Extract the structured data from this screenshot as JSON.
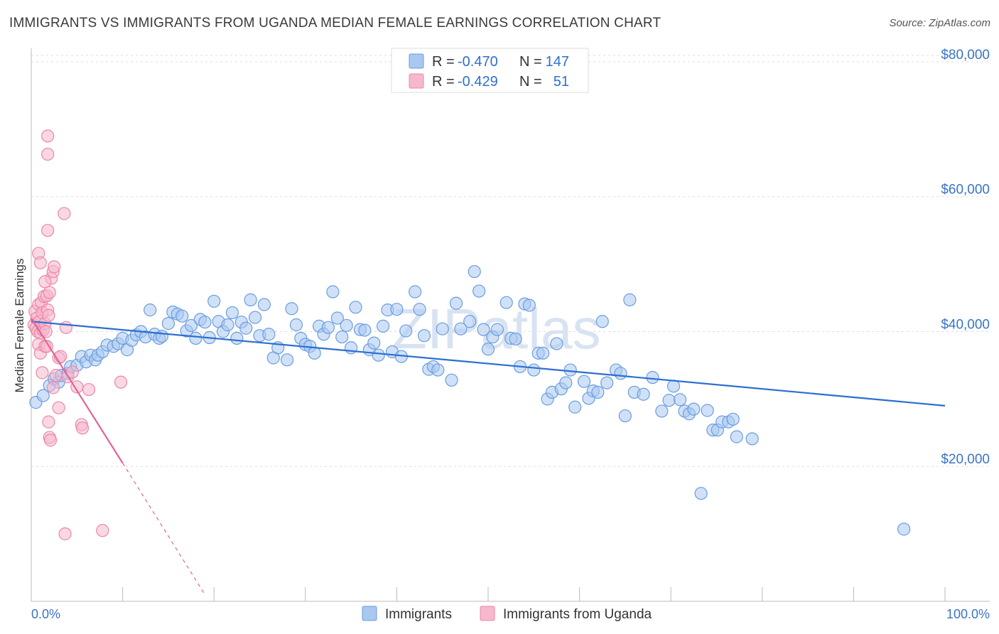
{
  "title": "IMMIGRANTS VS IMMIGRANTS FROM UGANDA MEDIAN FEMALE EARNINGS CORRELATION CHART",
  "source": "Source: ZipAtlas.com",
  "watermark": "ZIPatlas",
  "colors": {
    "blue_fill": "#a9c8f0",
    "blue_stroke": "#6a9de0",
    "blue_line": "#2b6fd0",
    "pink_fill": "#f6b8cc",
    "pink_stroke": "#ec86a8",
    "pink_line": "#e0649a",
    "grid": "#dddddd",
    "tick_label": "#3a73c8"
  },
  "legend": {
    "rows": [
      {
        "r_label": "R = ",
        "r_value": "-0.470",
        "n_label": "N = ",
        "n_value": "147"
      },
      {
        "r_label": "R = ",
        "r_value": "-0.429",
        "n_label": "N = ",
        "n_value": "51"
      }
    ]
  },
  "bottom_legend": [
    "Immigrants",
    "Immigrants from Uganda"
  ],
  "chart_data": {
    "type": "scatter",
    "title": "IMMIGRANTS VS IMMIGRANTS FROM UGANDA MEDIAN FEMALE EARNINGS CORRELATION CHART",
    "xlabel": "",
    "ylabel": "Median Female Earnings",
    "xlim": [
      0,
      100
    ],
    "ylim": [
      0,
      82000
    ],
    "x_tick_labels": [
      "0.0%",
      "100.0%"
    ],
    "y_ticks": [
      20000,
      40000,
      60000,
      80000
    ],
    "y_tick_labels": [
      "$20,000",
      "$40,000",
      "$60,000",
      "$80,000"
    ],
    "series": [
      {
        "name": "Immigrants",
        "r": -0.47,
        "n": 147,
        "trend": {
          "x": [
            0,
            100
          ],
          "y": [
            41500,
            29000
          ]
        },
        "points": [
          [
            0.5,
            29500
          ],
          [
            1.3,
            30500
          ],
          [
            2,
            32000
          ],
          [
            2.5,
            33000
          ],
          [
            3,
            32500
          ],
          [
            3.3,
            33500
          ],
          [
            4,
            33800
          ],
          [
            4.3,
            34800
          ],
          [
            5,
            35000
          ],
          [
            5.5,
            36300
          ],
          [
            6,
            35500
          ],
          [
            6.5,
            36500
          ],
          [
            7,
            35800
          ],
          [
            7.3,
            36500
          ],
          [
            7.8,
            37000
          ],
          [
            8.3,
            38000
          ],
          [
            9,
            37800
          ],
          [
            9.5,
            38200
          ],
          [
            10,
            39000
          ],
          [
            10.5,
            37300
          ],
          [
            11,
            38700
          ],
          [
            11.5,
            39500
          ],
          [
            12,
            40000
          ],
          [
            12.5,
            39200
          ],
          [
            13,
            43200
          ],
          [
            13.5,
            39600
          ],
          [
            14,
            39000
          ],
          [
            14.3,
            39300
          ],
          [
            15,
            41200
          ],
          [
            15.5,
            42900
          ],
          [
            16,
            42600
          ],
          [
            16.5,
            42300
          ],
          [
            17,
            40100
          ],
          [
            17.5,
            40900
          ],
          [
            18,
            39000
          ],
          [
            18.5,
            41800
          ],
          [
            19,
            41400
          ],
          [
            19.5,
            39100
          ],
          [
            20,
            44500
          ],
          [
            20.5,
            41500
          ],
          [
            21,
            40000
          ],
          [
            21.5,
            41000
          ],
          [
            22,
            42800
          ],
          [
            22.5,
            39000
          ],
          [
            23,
            41400
          ],
          [
            23.5,
            40500
          ],
          [
            24,
            44700
          ],
          [
            24.5,
            42100
          ],
          [
            25,
            39400
          ],
          [
            25.5,
            44000
          ],
          [
            26,
            39600
          ],
          [
            26.5,
            36100
          ],
          [
            27,
            37600
          ],
          [
            28,
            35800
          ],
          [
            28.5,
            43400
          ],
          [
            29,
            41000
          ],
          [
            29.5,
            39000
          ],
          [
            30,
            38100
          ],
          [
            30.5,
            37800
          ],
          [
            31,
            36800
          ],
          [
            31.5,
            40800
          ],
          [
            32,
            39600
          ],
          [
            32.5,
            40600
          ],
          [
            33,
            45900
          ],
          [
            33.5,
            42000
          ],
          [
            34,
            39200
          ],
          [
            34.5,
            40900
          ],
          [
            35,
            37600
          ],
          [
            35.5,
            43600
          ],
          [
            36,
            40300
          ],
          [
            36.5,
            40200
          ],
          [
            37,
            37300
          ],
          [
            37.5,
            38300
          ],
          [
            38,
            36500
          ],
          [
            38.5,
            40800
          ],
          [
            39,
            43200
          ],
          [
            39.5,
            37000
          ],
          [
            40,
            43300
          ],
          [
            40.5,
            36300
          ],
          [
            41,
            40100
          ],
          [
            42,
            45900
          ],
          [
            42.5,
            43300
          ],
          [
            43,
            39400
          ],
          [
            43.5,
            34400
          ],
          [
            44,
            34800
          ],
          [
            44.5,
            34300
          ],
          [
            45,
            40400
          ],
          [
            46,
            32800
          ],
          [
            46.5,
            44200
          ],
          [
            47,
            40400
          ],
          [
            48,
            41500
          ],
          [
            48.5,
            48900
          ],
          [
            49,
            46000
          ],
          [
            49.5,
            40300
          ],
          [
            50,
            37400
          ],
          [
            50.5,
            39200
          ],
          [
            51,
            40300
          ],
          [
            52,
            44300
          ],
          [
            52.5,
            39000
          ],
          [
            53,
            38900
          ],
          [
            53.5,
            34800
          ],
          [
            54,
            44100
          ],
          [
            54.5,
            43900
          ],
          [
            55,
            34300
          ],
          [
            55.5,
            36800
          ],
          [
            56,
            36800
          ],
          [
            56.5,
            30000
          ],
          [
            57,
            31000
          ],
          [
            57.5,
            38200
          ],
          [
            58,
            31500
          ],
          [
            58.5,
            32400
          ],
          [
            59,
            34300
          ],
          [
            59.5,
            28800
          ],
          [
            60.5,
            32600
          ],
          [
            61,
            30100
          ],
          [
            61.5,
            31200
          ],
          [
            62,
            31000
          ],
          [
            62.5,
            41500
          ],
          [
            63,
            32400
          ],
          [
            64,
            34300
          ],
          [
            64.5,
            33800
          ],
          [
            65,
            27500
          ],
          [
            65.5,
            44700
          ],
          [
            66,
            31000
          ],
          [
            67,
            30700
          ],
          [
            68,
            33200
          ],
          [
            69,
            28200
          ],
          [
            69.8,
            29800
          ],
          [
            70.3,
            31900
          ],
          [
            71,
            29900
          ],
          [
            71.5,
            28200
          ],
          [
            72,
            27800
          ],
          [
            72.5,
            28500
          ],
          [
            73.3,
            16000
          ],
          [
            74,
            28300
          ],
          [
            74.6,
            25400
          ],
          [
            75.1,
            25400
          ],
          [
            75.6,
            26600
          ],
          [
            76.3,
            26600
          ],
          [
            76.8,
            27000
          ],
          [
            77.2,
            24400
          ],
          [
            78.9,
            24100
          ],
          [
            95.5,
            10700
          ]
        ]
      },
      {
        "name": "Immigrants from Uganda",
        "r": -0.429,
        "n": 51,
        "trend": {
          "x": [
            0,
            10
          ],
          "y": [
            42000,
            20500
          ]
        },
        "trend_dashed": {
          "x": [
            10,
            19
          ],
          "y": [
            20500,
            1000
          ]
        },
        "points": [
          [
            0.3,
            41000
          ],
          [
            0.4,
            43000
          ],
          [
            0.5,
            40500
          ],
          [
            0.6,
            42000
          ],
          [
            0.7,
            40000
          ],
          [
            0.8,
            44000
          ],
          [
            0.9,
            41500
          ],
          [
            1.0,
            39800
          ],
          [
            1.1,
            44300
          ],
          [
            1.2,
            42800
          ],
          [
            1.3,
            40200
          ],
          [
            1.4,
            45200
          ],
          [
            1.5,
            41200
          ],
          [
            1.6,
            40000
          ],
          [
            1.7,
            45300
          ],
          [
            1.8,
            43200
          ],
          [
            1.9,
            42400
          ],
          [
            2.0,
            45800
          ],
          [
            0.8,
            38100
          ],
          [
            1.0,
            36800
          ],
          [
            1.2,
            33900
          ],
          [
            1.5,
            37800
          ],
          [
            1.7,
            37800
          ],
          [
            2.2,
            47900
          ],
          [
            2.4,
            48900
          ],
          [
            0.8,
            51600
          ],
          [
            1.0,
            50200
          ],
          [
            1.5,
            47400
          ],
          [
            1.8,
            55000
          ],
          [
            2.5,
            49600
          ],
          [
            1.8,
            69000
          ],
          [
            1.8,
            66300
          ],
          [
            3.6,
            57500
          ],
          [
            2.7,
            33500
          ],
          [
            2.4,
            31700
          ],
          [
            3.0,
            36100
          ],
          [
            3.2,
            36300
          ],
          [
            1.9,
            26600
          ],
          [
            2.0,
            24300
          ],
          [
            2.1,
            23900
          ],
          [
            3.0,
            28700
          ],
          [
            3.8,
            40600
          ],
          [
            4.0,
            33300
          ],
          [
            4.5,
            34000
          ],
          [
            5.0,
            31800
          ],
          [
            5.5,
            26200
          ],
          [
            5.6,
            25700
          ],
          [
            6.3,
            31400
          ],
          [
            9.8,
            32500
          ],
          [
            3.7,
            10000
          ],
          [
            7.8,
            10500
          ]
        ]
      }
    ],
    "legend_position": "top-center"
  }
}
